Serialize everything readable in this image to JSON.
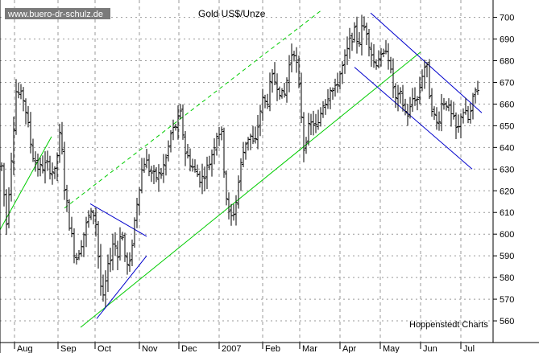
{
  "chart_data": {
    "type": "ohlc",
    "title": "Gold US$/Unze",
    "watermark": "www.buero-dr-schulz.de",
    "credit": "Hoppenstedt Charts",
    "grid": true,
    "y_axis_side": "right",
    "ylim": [
      550,
      708
    ],
    "y_ticks": [
      560,
      570,
      580,
      590,
      600,
      610,
      620,
      630,
      640,
      650,
      660,
      670,
      680,
      690,
      700
    ],
    "x_tick_labels": [
      "Aug",
      "Sep",
      "Oct",
      "Nov",
      "Dec",
      "2007",
      "Feb",
      "Mar",
      "Apr",
      "May",
      "Jun",
      "Jul"
    ],
    "colors": {
      "bars": "#000000",
      "trend_green": "#00cc00",
      "trend_blue": "#0000cc",
      "grid": "#999999"
    },
    "price_path": [
      [
        0,
        640
      ],
      [
        8,
        605
      ],
      [
        20,
        666
      ],
      [
        30,
        662
      ],
      [
        40,
        637
      ],
      [
        48,
        630
      ],
      [
        58,
        632
      ],
      [
        68,
        628
      ],
      [
        75,
        648
      ],
      [
        80,
        622
      ],
      [
        86,
        605
      ],
      [
        94,
        588
      ],
      [
        100,
        595
      ],
      [
        110,
        608
      ],
      [
        118,
        610
      ],
      [
        123,
        585
      ],
      [
        127,
        567
      ],
      [
        132,
        580
      ],
      [
        136,
        588
      ],
      [
        141,
        598
      ],
      [
        146,
        590
      ],
      [
        150,
        604
      ],
      [
        155,
        590
      ],
      [
        160,
        582
      ],
      [
        165,
        600
      ],
      [
        170,
        615
      ],
      [
        175,
        628
      ],
      [
        180,
        635
      ],
      [
        185,
        630
      ],
      [
        192,
        626
      ],
      [
        200,
        628
      ],
      [
        207,
        636
      ],
      [
        212,
        646
      ],
      [
        218,
        650
      ],
      [
        224,
        655
      ],
      [
        230,
        638
      ],
      [
        240,
        630
      ],
      [
        250,
        625
      ],
      [
        260,
        633
      ],
      [
        265,
        640
      ],
      [
        270,
        648
      ],
      [
        275,
        646
      ],
      [
        280,
        620
      ],
      [
        285,
        606
      ],
      [
        292,
        612
      ],
      [
        298,
        630
      ],
      [
        304,
        642
      ],
      [
        310,
        646
      ],
      [
        316,
        640
      ],
      [
        320,
        650
      ],
      [
        325,
        662
      ],
      [
        331,
        660
      ],
      [
        337,
        672
      ],
      [
        343,
        670
      ],
      [
        352,
        662
      ],
      [
        360,
        680
      ],
      [
        364,
        687
      ],
      [
        368,
        678
      ],
      [
        373,
        660
      ],
      [
        377,
        640
      ],
      [
        382,
        648
      ],
      [
        388,
        652
      ],
      [
        394,
        648
      ],
      [
        400,
        660
      ],
      [
        405,
        662
      ],
      [
        410,
        668
      ],
      [
        415,
        665
      ],
      [
        420,
        672
      ],
      [
        425,
        677
      ],
      [
        430,
        683
      ],
      [
        435,
        690
      ],
      [
        440,
        693
      ],
      [
        445,
        688
      ],
      [
        450,
        696
      ],
      [
        455,
        694
      ],
      [
        460,
        685
      ],
      [
        465,
        678
      ],
      [
        470,
        682
      ],
      [
        475,
        680
      ],
      [
        480,
        688
      ],
      [
        484,
        676
      ],
      [
        488,
        668
      ],
      [
        492,
        660
      ],
      [
        496,
        665
      ],
      [
        500,
        660
      ],
      [
        504,
        655
      ],
      [
        508,
        656
      ],
      [
        513,
        664
      ],
      [
        518,
        662
      ],
      [
        522,
        670
      ],
      [
        526,
        678
      ],
      [
        530,
        676
      ],
      [
        533,
        665
      ],
      [
        538,
        655
      ],
      [
        543,
        650
      ],
      [
        548,
        660
      ],
      [
        553,
        662
      ],
      [
        558,
        656
      ],
      [
        563,
        652
      ],
      [
        568,
        646
      ],
      [
        573,
        658
      ],
      [
        578,
        655
      ],
      [
        582,
        652
      ],
      [
        586,
        660
      ],
      [
        590,
        666
      ],
      [
        594,
        668
      ]
    ]
  }
}
